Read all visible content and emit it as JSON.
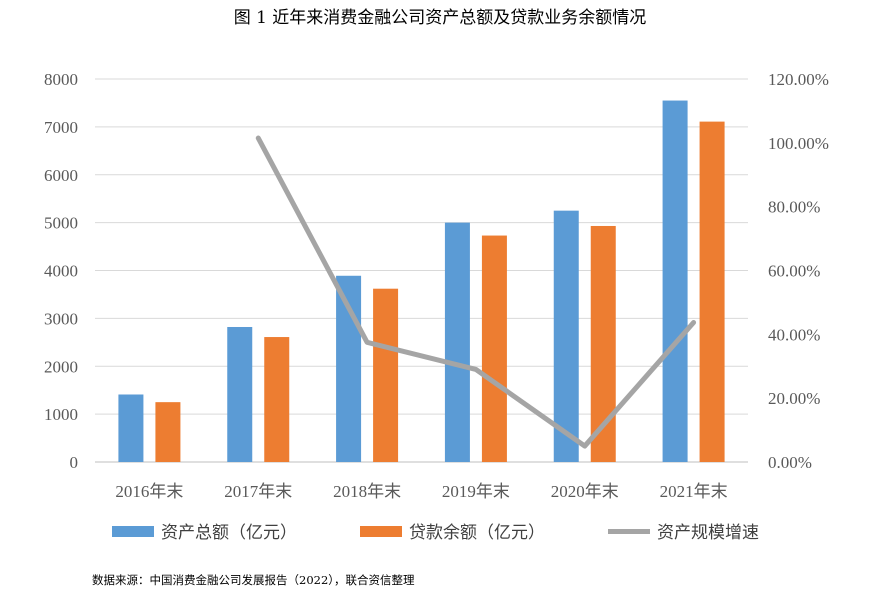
{
  "chart_data": {
    "type": "bar",
    "title": "图 1  近年来消费金融公司资产总额及贷款业务余额情况",
    "categories": [
      "2016年末",
      "2017年末",
      "2018年末",
      "2019年末",
      "2020年末",
      "2021年末"
    ],
    "series": [
      {
        "name": "资产总额（亿元）",
        "type": "bar",
        "axis": "left",
        "color": "#5B9BD5",
        "values": [
          1410,
          2820,
          3890,
          5000,
          5250,
          7550
        ]
      },
      {
        "name": "贷款余额（亿元）",
        "type": "bar",
        "axis": "left",
        "color": "#ED7D31",
        "values": [
          1250,
          2610,
          3620,
          4730,
          4930,
          7110
        ]
      },
      {
        "name": "资产规模增速",
        "type": "line",
        "axis": "right",
        "color": "#A5A5A5",
        "values": [
          null,
          101.5,
          37.5,
          29.0,
          5.0,
          43.7
        ]
      }
    ],
    "y_left": {
      "min": 0,
      "max": 8000,
      "ticks": [
        "0",
        "1000",
        "2000",
        "3000",
        "4000",
        "5000",
        "6000",
        "7000",
        "8000"
      ]
    },
    "y_right": {
      "min": 0,
      "max": 120,
      "ticks": [
        "0.00%",
        "20.00%",
        "40.00%",
        "60.00%",
        "80.00%",
        "100.00%",
        "120.00%"
      ]
    },
    "grid": true,
    "legend_position": "bottom",
    "source": "数据来源：中国消费金融公司发展报告（2022），联合资信整理"
  }
}
